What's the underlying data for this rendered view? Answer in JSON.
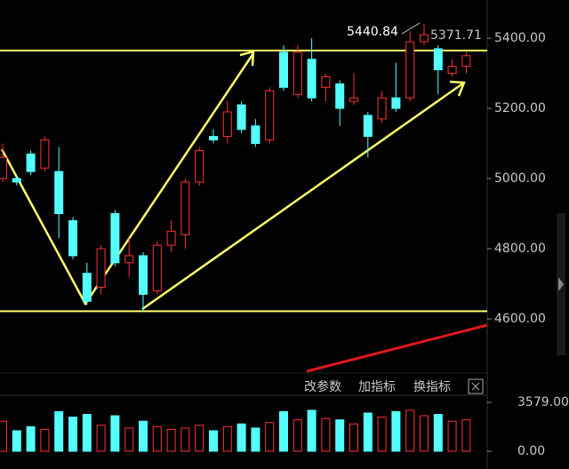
{
  "chart_data": {
    "type": "candlestick",
    "categories": [
      null,
      null,
      null,
      null,
      null,
      null,
      null,
      null,
      null,
      null,
      null,
      null,
      null,
      null,
      null,
      null,
      null,
      null,
      null,
      null,
      null,
      null,
      null,
      null,
      null,
      null,
      null,
      null,
      null,
      null,
      null,
      null,
      null,
      null
    ],
    "open": [
      5000,
      5000,
      5070,
      5030,
      5020,
      4880,
      4730,
      4690,
      4900,
      4760,
      4780,
      4680,
      4810,
      4840,
      4990,
      5120,
      5120,
      5210,
      5150,
      5110,
      5360,
      5240,
      5340,
      5260,
      5270,
      5220,
      5180,
      5170,
      5230,
      5230,
      5390,
      5370,
      5300,
      5320
    ],
    "high": [
      5100,
      5010,
      5080,
      5120,
      5090,
      4890,
      4760,
      4810,
      4910,
      4830,
      4790,
      4820,
      4880,
      5000,
      5090,
      5140,
      5220,
      5220,
      5170,
      5260,
      5380,
      5380,
      5400,
      5300,
      5280,
      5300,
      5190,
      5250,
      5330,
      5420,
      5440.84,
      5380,
      5340,
      5360
    ],
    "low": [
      4990,
      4980,
      5010,
      5020,
      4830,
      4770,
      4640,
      4670,
      4750,
      4720,
      4620,
      4670,
      4790,
      4800,
      4980,
      5100,
      5100,
      5130,
      5090,
      5100,
      5250,
      5230,
      5220,
      5220,
      5150,
      5210,
      5060,
      5160,
      5190,
      5220,
      5380,
      5240,
      5290,
      5300
    ],
    "close": [
      5060,
      4990,
      5020,
      5110,
      4900,
      4780,
      4650,
      4800,
      4760,
      4780,
      4670,
      4810,
      4850,
      4990,
      5080,
      5110,
      5190,
      5140,
      5100,
      5250,
      5260,
      5360,
      5230,
      5290,
      5200,
      5230,
      5120,
      5230,
      5200,
      5390,
      5410,
      5310,
      5320,
      5350
    ],
    "volume": [
      2200,
      1500,
      1800,
      1600,
      2900,
      2500,
      2700,
      1900,
      2600,
      1700,
      2200,
      1800,
      1600,
      1700,
      1900,
      1500,
      1800,
      2000,
      1700,
      2100,
      2900,
      2300,
      3000,
      2400,
      2300,
      2000,
      2800,
      2500,
      2900,
      3000,
      2600,
      2700,
      2200,
      2300
    ],
    "ylim": [
      4445.6,
      5508.9
    ],
    "yticks": [
      {
        "value": 5400,
        "label": "5400.00"
      },
      {
        "value": 5200,
        "label": "5200.00"
      },
      {
        "value": 5000,
        "label": "5000.00"
      },
      {
        "value": 4800,
        "label": "4800.00"
      },
      {
        "value": 4600,
        "label": "4600.00"
      }
    ],
    "volume_ylim": [
      0,
      4100
    ],
    "volume_yticks": [
      {
        "value": 3579,
        "label": "3579.00"
      },
      {
        "value": 0,
        "label": "0.00"
      }
    ],
    "levels": [
      5365,
      4622
    ],
    "up_color": "#ff3232",
    "down_color": "#54ffff",
    "level_color": "#ffff66",
    "annotations": [
      "5440.84",
      "5371.71"
    ],
    "buttons": [
      "改参数",
      "加指标",
      "换指标"
    ]
  }
}
